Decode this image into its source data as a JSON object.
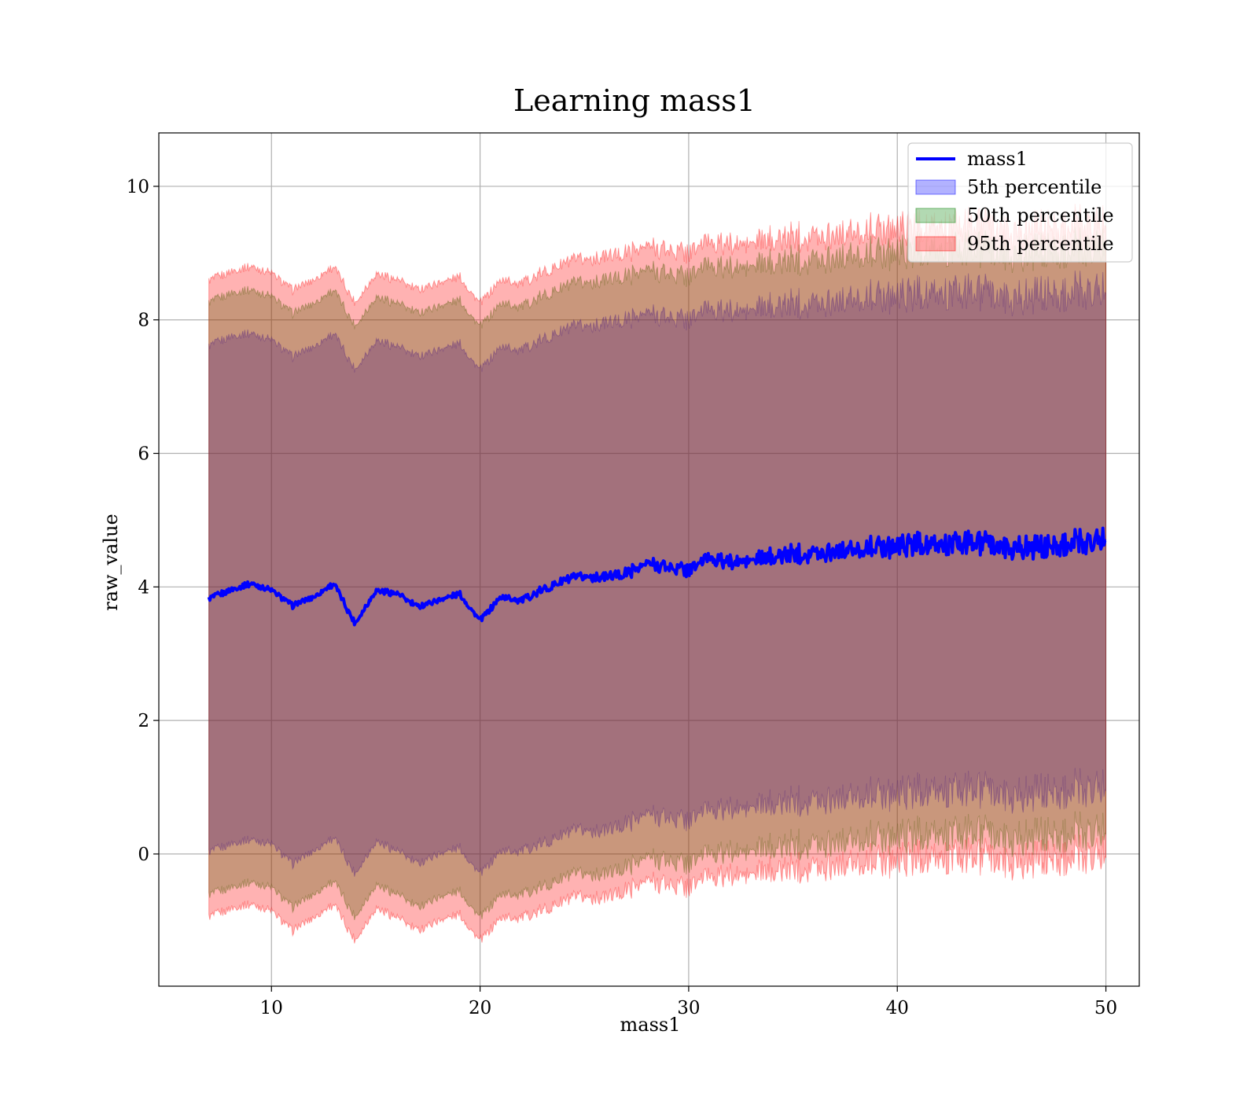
{
  "chart_data": {
    "type": "area",
    "title": "Learning mass1",
    "xlabel": "mass1",
    "ylabel": "raw_value",
    "xlim": [
      4.6,
      51.6
    ],
    "ylim": [
      -1.98,
      10.8
    ],
    "xticks": [
      10,
      20,
      30,
      40,
      50
    ],
    "yticks": [
      0,
      2,
      4,
      6,
      8,
      10
    ],
    "xtick_labels": [
      "10",
      "20",
      "30",
      "40",
      "50"
    ],
    "ytick_labels": [
      "0",
      "2",
      "4",
      "6",
      "8",
      "10"
    ],
    "grid": true,
    "legend_position": "top-right",
    "legend": [
      {
        "label": "mass1",
        "kind": "line",
        "color": "#0000ff"
      },
      {
        "label": "5th percentile",
        "kind": "patch",
        "color": "#0000ff"
      },
      {
        "label": "50th percentile",
        "kind": "patch",
        "color": "#008000"
      },
      {
        "label": "95th percentile",
        "kind": "patch",
        "color": "#ff0000"
      }
    ],
    "x": [
      7,
      8,
      9,
      10,
      11,
      12,
      13,
      14,
      15,
      16,
      17,
      18,
      19,
      20,
      21,
      22,
      23,
      24,
      25,
      26,
      27,
      28,
      29,
      30,
      31,
      32,
      33,
      34,
      35,
      36,
      37,
      38,
      39,
      40,
      41,
      42,
      43,
      44,
      45,
      46,
      47,
      48,
      49,
      50
    ],
    "series": [
      {
        "name": "mass1",
        "kind": "line",
        "color": "#0000ff",
        "values": [
          3.82,
          3.95,
          4.05,
          3.95,
          3.72,
          3.85,
          4.05,
          3.45,
          3.95,
          3.9,
          3.7,
          3.8,
          3.9,
          3.5,
          3.85,
          3.8,
          3.95,
          4.1,
          4.15,
          4.15,
          4.2,
          4.35,
          4.3,
          4.25,
          4.45,
          4.35,
          4.4,
          4.45,
          4.5,
          4.5,
          4.55,
          4.55,
          4.6,
          4.6,
          4.65,
          4.6,
          4.65,
          4.65,
          4.6,
          4.6,
          4.6,
          4.65,
          4.65,
          4.75
        ]
      },
      {
        "name": "5th percentile",
        "kind": "band",
        "color": "#0000ff",
        "opacity": 0.3,
        "lower": [
          0.02,
          0.15,
          0.22,
          0.15,
          -0.15,
          0.05,
          0.25,
          -0.3,
          0.2,
          0.05,
          -0.15,
          0.0,
          0.1,
          -0.3,
          0.05,
          0.05,
          0.15,
          0.3,
          0.35,
          0.35,
          0.45,
          0.6,
          0.55,
          0.5,
          0.7,
          0.65,
          0.7,
          0.75,
          0.8,
          0.8,
          0.85,
          0.85,
          0.9,
          0.9,
          0.95,
          0.9,
          0.95,
          0.95,
          0.9,
          0.9,
          0.95,
          0.95,
          0.95,
          1.05
        ],
        "upper": [
          7.6,
          7.75,
          7.8,
          7.7,
          7.45,
          7.6,
          7.8,
          7.25,
          7.7,
          7.6,
          7.45,
          7.55,
          7.65,
          7.25,
          7.6,
          7.55,
          7.7,
          7.85,
          7.9,
          7.95,
          8.0,
          8.1,
          8.05,
          8.0,
          8.2,
          8.1,
          8.15,
          8.2,
          8.25,
          8.25,
          8.3,
          8.3,
          8.35,
          8.35,
          8.4,
          8.35,
          8.4,
          8.4,
          8.35,
          8.35,
          8.4,
          8.4,
          8.4,
          8.5
        ]
      },
      {
        "name": "50th percentile",
        "kind": "band",
        "color": "#008000",
        "opacity": 0.3,
        "lower": [
          -0.62,
          -0.5,
          -0.42,
          -0.5,
          -0.8,
          -0.6,
          -0.4,
          -0.95,
          -0.45,
          -0.6,
          -0.8,
          -0.65,
          -0.55,
          -0.95,
          -0.6,
          -0.6,
          -0.5,
          -0.35,
          -0.3,
          -0.3,
          -0.2,
          -0.05,
          -0.1,
          -0.15,
          0.05,
          0.0,
          0.05,
          0.1,
          0.15,
          0.15,
          0.2,
          0.2,
          0.25,
          0.25,
          0.3,
          0.25,
          0.3,
          0.3,
          0.25,
          0.25,
          0.3,
          0.3,
          0.3,
          0.4
        ],
        "upper": [
          8.25,
          8.4,
          8.45,
          8.35,
          8.1,
          8.25,
          8.45,
          7.9,
          8.35,
          8.25,
          8.1,
          8.2,
          8.3,
          7.9,
          8.25,
          8.2,
          8.35,
          8.5,
          8.55,
          8.6,
          8.65,
          8.75,
          8.7,
          8.65,
          8.85,
          8.75,
          8.8,
          8.85,
          8.9,
          8.9,
          8.95,
          8.95,
          9.0,
          9.0,
          9.05,
          9.0,
          9.05,
          9.05,
          9.0,
          9.0,
          9.05,
          9.05,
          9.05,
          9.15
        ]
      },
      {
        "name": "95th percentile",
        "kind": "band",
        "color": "#ff0000",
        "opacity": 0.3,
        "lower": [
          -0.95,
          -0.82,
          -0.75,
          -0.85,
          -1.15,
          -0.95,
          -0.75,
          -1.3,
          -0.8,
          -0.95,
          -1.15,
          -1.0,
          -0.9,
          -1.3,
          -0.95,
          -0.95,
          -0.85,
          -0.7,
          -0.65,
          -0.65,
          -0.55,
          -0.4,
          -0.45,
          -0.5,
          -0.3,
          -0.35,
          -0.3,
          -0.25,
          -0.2,
          -0.2,
          -0.15,
          -0.15,
          -0.1,
          -0.1,
          -0.05,
          -0.1,
          -0.05,
          -0.05,
          -0.1,
          -0.1,
          -0.05,
          -0.05,
          -0.05,
          0.05
        ],
        "upper": [
          8.58,
          8.72,
          8.8,
          8.7,
          8.45,
          8.6,
          8.8,
          8.25,
          8.7,
          8.6,
          8.45,
          8.55,
          8.65,
          8.25,
          8.6,
          8.55,
          8.7,
          8.85,
          8.9,
          8.95,
          9.0,
          9.1,
          9.05,
          9.0,
          9.2,
          9.1,
          9.15,
          9.2,
          9.25,
          9.25,
          9.3,
          9.3,
          9.35,
          9.35,
          9.4,
          9.35,
          9.4,
          9.4,
          9.35,
          9.35,
          9.4,
          9.4,
          9.4,
          9.5
        ]
      }
    ]
  }
}
